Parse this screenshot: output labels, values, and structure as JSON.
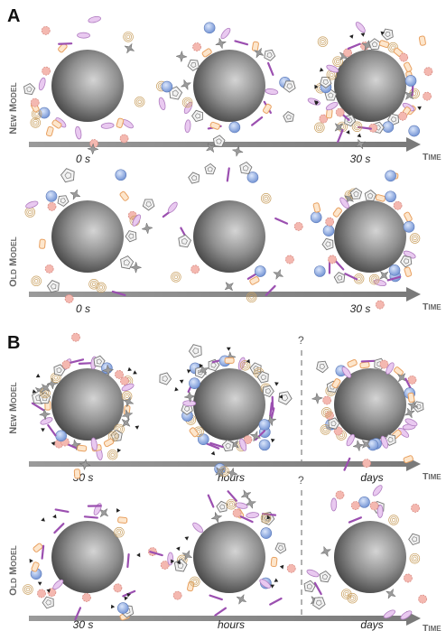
{
  "panels": [
    {
      "letter": "A",
      "rows": [
        {
          "label": "New Model",
          "times": [
            "0 s",
            "30 s"
          ],
          "axis_title": "Time"
        },
        {
          "label": "Old Model",
          "times": [
            "0 s",
            "30 s"
          ],
          "axis_title": "Time"
        }
      ]
    },
    {
      "letter": "B",
      "question_marks": [
        "?",
        "?"
      ],
      "rows": [
        {
          "label": "New Model",
          "times": [
            "30 s",
            "hours",
            "days"
          ],
          "axis_title": "Time"
        },
        {
          "label": "Old Model",
          "times": [
            "30 s",
            "hours",
            "days"
          ],
          "axis_title": "Time"
        }
      ]
    }
  ],
  "colors": {
    "sphere_dark": "#4a4a4a",
    "sphere_light": "#cfcfcf",
    "arrow": "#8c8c8c",
    "blue_particle": "#7f9fd8",
    "pink_particle": "#f4b8b0",
    "orange_particle": "#e8a060",
    "purple_rod": "#9b4fb0",
    "pentagon": "#777777"
  }
}
